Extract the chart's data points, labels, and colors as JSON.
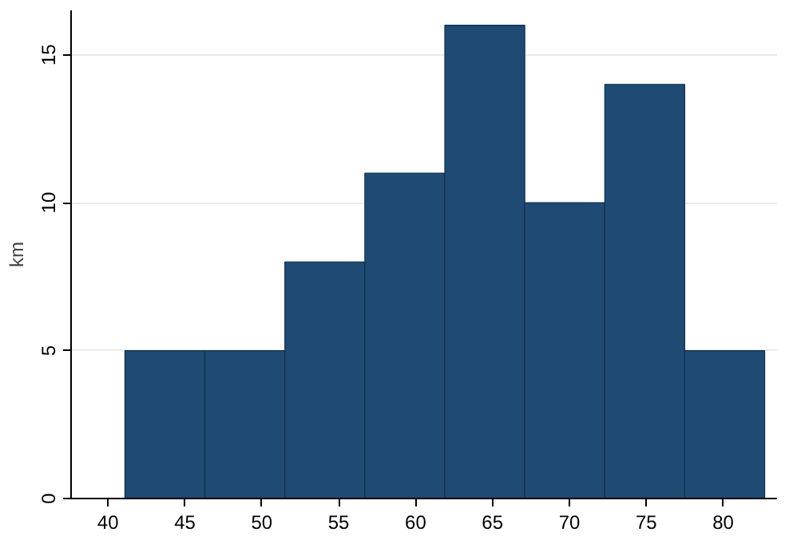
{
  "chart_data": {
    "type": "histogram",
    "ylabel": "km",
    "bins": [
      41.1,
      46.3,
      51.5,
      56.7,
      61.9,
      67.1,
      72.3,
      77.5,
      82.7
    ],
    "values": [
      5,
      5,
      8,
      11,
      16,
      10,
      14,
      5
    ],
    "color": "#1f4a73",
    "xlim": [
      37.6,
      83.5
    ],
    "xticks": [
      40,
      45,
      50,
      55,
      60,
      65,
      70,
      75,
      80
    ],
    "ylim": [
      0,
      16.5
    ],
    "yticks": [
      0,
      5,
      10,
      15
    ],
    "grid": "y"
  }
}
